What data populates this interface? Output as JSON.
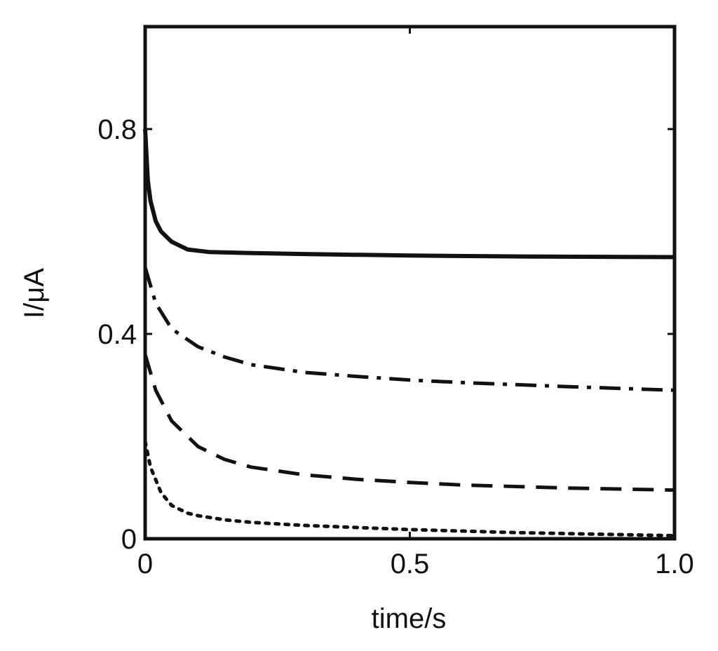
{
  "chart_data": {
    "type": "line",
    "xlabel": "time/s",
    "ylabel": "I/μA",
    "xlim": [
      0,
      1.0
    ],
    "ylim": [
      0,
      1.0
    ],
    "xticks": [
      {
        "value": 0,
        "label": "0"
      },
      {
        "value": 0.5,
        "label": "0.5"
      },
      {
        "value": 1.0,
        "label": "1.0"
      }
    ],
    "yticks": [
      {
        "value": 0,
        "label": "0"
      },
      {
        "value": 0.4,
        "label": "0.4"
      },
      {
        "value": 0.8,
        "label": "0.8"
      }
    ],
    "grid": false,
    "legend": "none",
    "series": [
      {
        "style": "solid",
        "x": [
          0,
          0.005,
          0.01,
          0.02,
          0.03,
          0.05,
          0.08,
          0.12,
          0.2,
          0.3,
          0.5,
          0.75,
          1.0
        ],
        "y": [
          0.8,
          0.7,
          0.66,
          0.62,
          0.6,
          0.58,
          0.565,
          0.56,
          0.558,
          0.556,
          0.553,
          0.551,
          0.55
        ]
      },
      {
        "style": "dashdot",
        "x": [
          0,
          0.02,
          0.05,
          0.1,
          0.15,
          0.2,
          0.3,
          0.4,
          0.5,
          0.6,
          0.8,
          1.0
        ],
        "y": [
          0.53,
          0.46,
          0.41,
          0.375,
          0.355,
          0.34,
          0.325,
          0.317,
          0.31,
          0.305,
          0.297,
          0.29
        ]
      },
      {
        "style": "dashed",
        "x": [
          0,
          0.02,
          0.05,
          0.1,
          0.15,
          0.2,
          0.3,
          0.4,
          0.5,
          0.6,
          0.8,
          1.0
        ],
        "y": [
          0.36,
          0.29,
          0.23,
          0.18,
          0.155,
          0.14,
          0.125,
          0.116,
          0.11,
          0.105,
          0.099,
          0.095
        ]
      },
      {
        "style": "dotted",
        "x": [
          0,
          0.01,
          0.03,
          0.05,
          0.08,
          0.1,
          0.15,
          0.2,
          0.3,
          0.5,
          0.7,
          1.0
        ],
        "y": [
          0.19,
          0.14,
          0.09,
          0.065,
          0.05,
          0.045,
          0.037,
          0.032,
          0.026,
          0.018,
          0.012,
          0.006
        ]
      }
    ]
  }
}
